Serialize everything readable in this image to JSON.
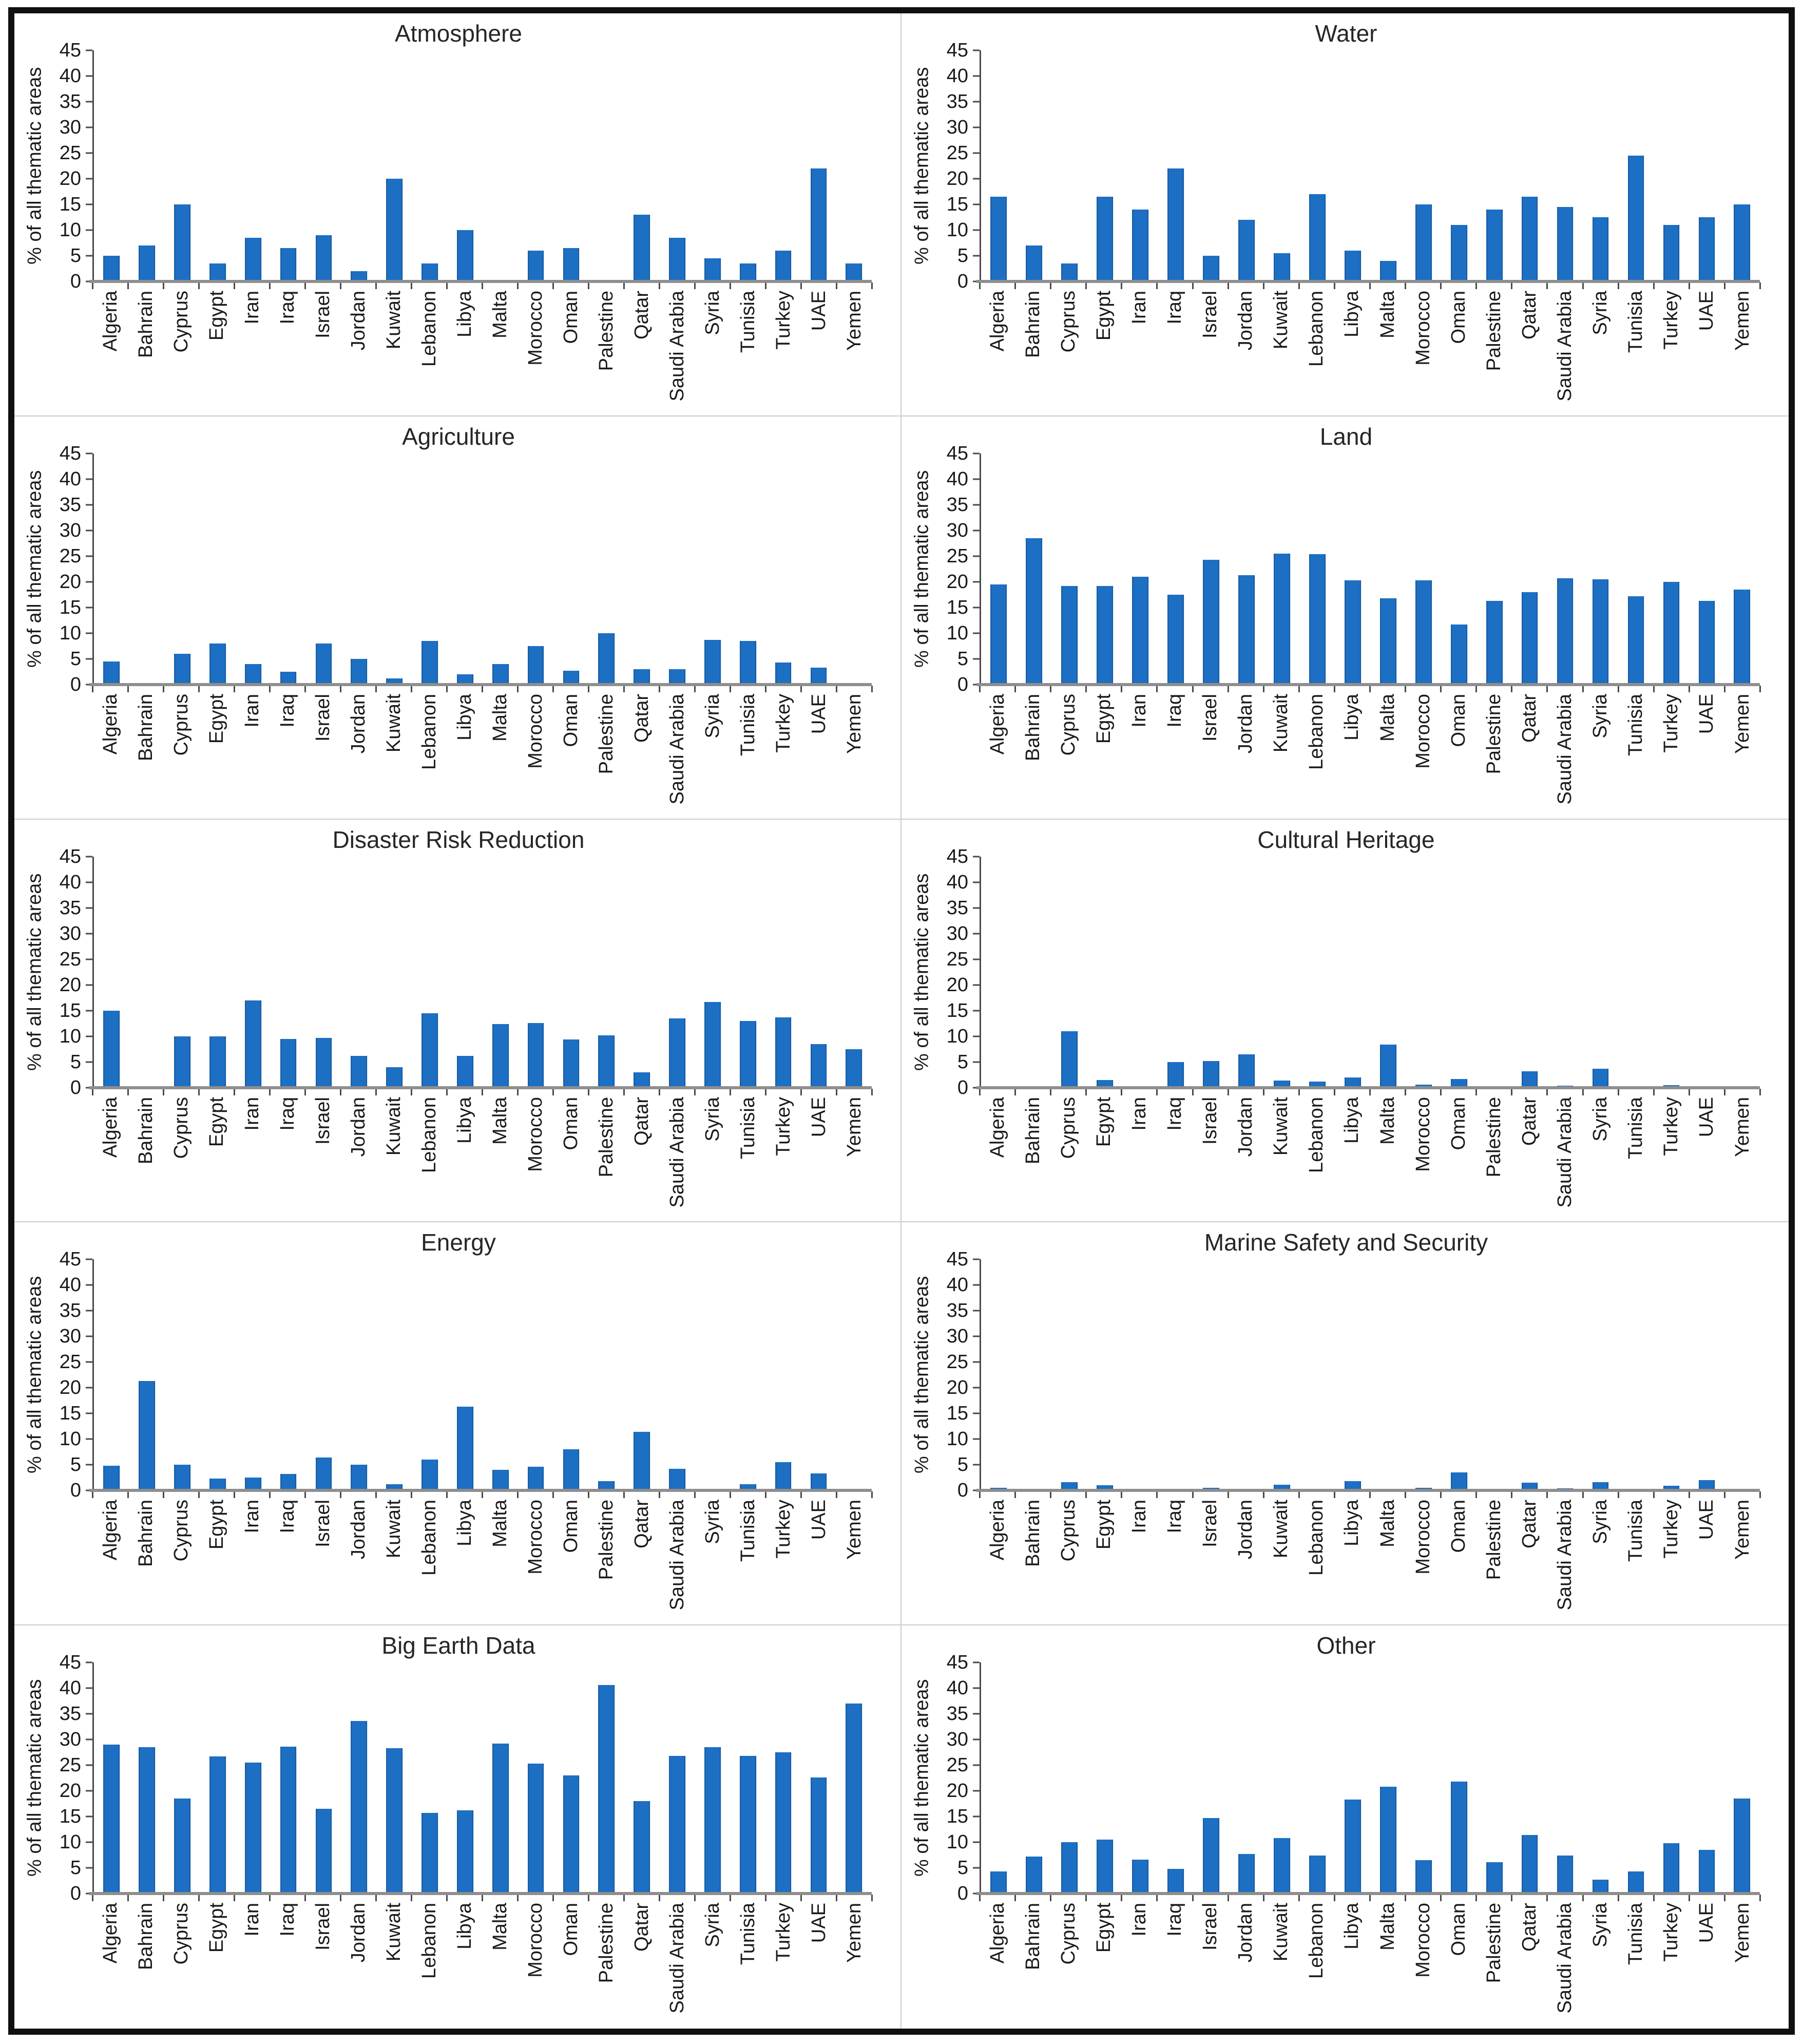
{
  "figure": {
    "border_color": "#101010",
    "separator_color": "#cccccc",
    "background": "#ffffff"
  },
  "chart_data": {
    "type": "bar",
    "layout": "grid-5x2",
    "ylabel": "% of all thematic areas",
    "ylim": [
      0,
      45
    ],
    "ytick_step": 5,
    "yticks": [
      0,
      5,
      10,
      15,
      20,
      25,
      30,
      35,
      40,
      45
    ],
    "grid": "off",
    "legend": "none",
    "bar_color": "#1d6fc3",
    "axis_line_color": "#8e8e8e",
    "categories": [
      "Algeria",
      "Bahrain",
      "Cyprus",
      "Egypt",
      "Iran",
      "Iraq",
      "Israel",
      "Jordan",
      "Kuwait",
      "Lebanon",
      "Libya",
      "Malta",
      "Morocco",
      "Oman",
      "Palestine",
      "Qatar",
      "Saudi Arabia",
      "Syria",
      "Tunisia",
      "Turkey",
      "UAE",
      "Yemen"
    ],
    "series": [
      {
        "name": "Atmosphere",
        "values": [
          5,
          7,
          15,
          3.5,
          8.5,
          6.5,
          9,
          2,
          20,
          3.5,
          10,
          0,
          6,
          6.5,
          0,
          13,
          8.5,
          4.5,
          3.5,
          6,
          22,
          3.5
        ]
      },
      {
        "name": "Water",
        "values": [
          16.5,
          7,
          3.5,
          16.5,
          14,
          22,
          5,
          12,
          5.5,
          17,
          6,
          4,
          15,
          11,
          14,
          16.5,
          14.5,
          12.5,
          24.5,
          11,
          12.5,
          15
        ]
      },
      {
        "name": "Agriculture",
        "values": [
          4.5,
          0,
          6,
          8,
          4,
          2.5,
          8,
          5,
          1.2,
          8.5,
          2,
          4,
          7.5,
          2.7,
          10,
          3,
          3,
          8.7,
          8.5,
          4.3,
          3.3,
          0
        ]
      },
      {
        "name": "Land",
        "values": [
          19.5,
          28.5,
          19.2,
          19.2,
          21,
          17.5,
          24.3,
          21.3,
          25.5,
          25.4,
          20.3,
          16.8,
          20.3,
          11.7,
          16.3,
          18,
          20.7,
          20.5,
          17.2,
          20,
          16.3,
          18.5
        ]
      },
      {
        "name": "Disaster Risk Reduction",
        "values": [
          15,
          0,
          10,
          10,
          17,
          9.5,
          9.7,
          6.2,
          4,
          14.5,
          6.2,
          12.4,
          12.6,
          9.4,
          10.2,
          3,
          13.5,
          16.7,
          13,
          13.7,
          8.5,
          7.5
        ]
      },
      {
        "name": "Cultural Heritage",
        "values": [
          0,
          0,
          11,
          1.5,
          0,
          5,
          5.2,
          6.5,
          1.4,
          1.2,
          2,
          8.4,
          0.6,
          1.7,
          0,
          3.2,
          0.4,
          3.7,
          0.2,
          0.5,
          0,
          0
        ]
      },
      {
        "name": "Energy",
        "values": [
          4.8,
          21.3,
          5,
          2.3,
          2.5,
          3.2,
          6.4,
          5,
          1.2,
          6,
          16.3,
          4,
          4.6,
          8,
          1.8,
          11.4,
          4.2,
          0,
          1.2,
          5.5,
          3.3,
          0
        ]
      },
      {
        "name": "Marine Safety and Security",
        "values": [
          0.5,
          0,
          1.6,
          1,
          0,
          0,
          0.5,
          0,
          1.1,
          0,
          1.8,
          0,
          0.5,
          3.5,
          0,
          1.5,
          0.4,
          1.6,
          0,
          0.9,
          2,
          0
        ]
      },
      {
        "name": "Big Earth Data",
        "values": [
          29,
          28.5,
          18.5,
          26.7,
          25.5,
          28.6,
          16.5,
          33.6,
          28.3,
          15.7,
          16.2,
          29.2,
          25.3,
          23,
          40.6,
          18,
          26.8,
          28.5,
          26.8,
          27.5,
          22.6,
          37
        ]
      },
      {
        "name": "Other",
        "values": [
          4.3,
          7.2,
          10,
          10.5,
          6.6,
          4.8,
          14.7,
          7.7,
          10.8,
          7.4,
          18.3,
          20.8,
          6.5,
          21.8,
          6.1,
          11.4,
          7.4,
          2.7,
          4.3,
          9.8,
          8.5,
          18.5
        ]
      }
    ]
  }
}
